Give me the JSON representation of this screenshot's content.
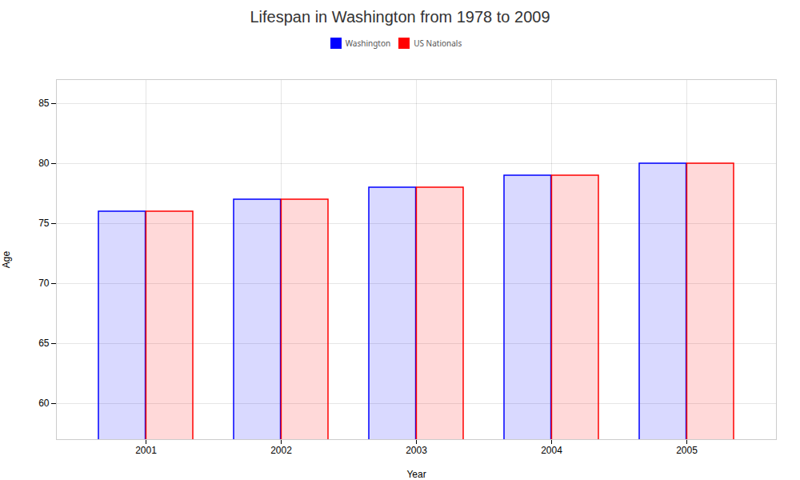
{
  "chart_data": {
    "type": "bar",
    "title": "Lifespan in Washington from 1978 to 2009",
    "xlabel": "Year",
    "ylabel": "Age",
    "categories": [
      2001,
      2002,
      2003,
      2004,
      2005
    ],
    "series": [
      {
        "name": "Washington",
        "color": "#0000ff",
        "values": [
          76,
          77,
          78,
          79,
          80
        ]
      },
      {
        "name": "US Nationals",
        "color": "#ff0000",
        "values": [
          76,
          77,
          78,
          79,
          80
        ]
      }
    ],
    "ylim": [
      57,
      87
    ],
    "yticks": [
      60,
      65,
      70,
      75,
      80,
      85
    ],
    "grid": true,
    "legend": "top"
  }
}
